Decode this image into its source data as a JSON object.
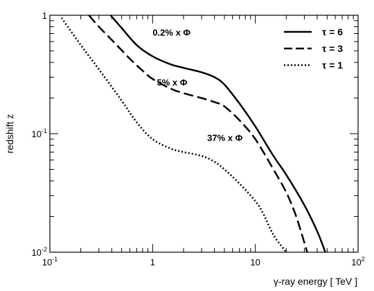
{
  "chart_data": {
    "type": "line",
    "xlabel": "γ-ray energy [ TeV ]",
    "ylabel": "redshift z",
    "xscale": "log",
    "yscale": "log",
    "xlim": [
      0.1,
      100
    ],
    "ylim": [
      0.01,
      1
    ],
    "x_ticks": [
      {
        "label": "10",
        "sup": "-1",
        "value": 0.1
      },
      {
        "label": "1",
        "sup": "",
        "value": 1
      },
      {
        "label": "10",
        "sup": "",
        "value": 10
      },
      {
        "label": "10",
        "sup": "2",
        "value": 100
      }
    ],
    "y_ticks": [
      {
        "label": "10",
        "sup": "-2",
        "value": 0.01
      },
      {
        "label": "10",
        "sup": "-1",
        "value": 0.1
      },
      {
        "label": "1",
        "sup": "",
        "value": 1
      }
    ],
    "legend_position": "top-right",
    "series": [
      {
        "name": "τ = 6",
        "style": "solid",
        "color": "#000000",
        "x": [
          0.39,
          0.5,
          0.7,
          1.0,
          1.5,
          2.0,
          3.0,
          4.0,
          5.0,
          7.0,
          10.0,
          15.0,
          20.0,
          30.0,
          40.0,
          48.0
        ],
        "y": [
          1.0,
          0.78,
          0.56,
          0.45,
          0.385,
          0.36,
          0.33,
          0.3,
          0.26,
          0.18,
          0.115,
          0.065,
          0.045,
          0.025,
          0.015,
          0.01
        ]
      },
      {
        "name": "τ = 3",
        "style": "dashed",
        "color": "#000000",
        "x": [
          0.24,
          0.3,
          0.4,
          0.6,
          0.8,
          1.0,
          1.5,
          2.0,
          3.0,
          4.0,
          5.0,
          7.0,
          10.0,
          15.0,
          20.0,
          25.0,
          32.0
        ],
        "y": [
          1.0,
          0.8,
          0.62,
          0.43,
          0.34,
          0.29,
          0.24,
          0.22,
          0.2,
          0.185,
          0.17,
          0.13,
          0.09,
          0.05,
          0.032,
          0.02,
          0.01
        ]
      },
      {
        "name": "τ = 1",
        "style": "dotted",
        "color": "#000000",
        "x": [
          0.13,
          0.2,
          0.3,
          0.5,
          0.7,
          1.0,
          1.5,
          2.0,
          3.0,
          4.0,
          5.0,
          7.0,
          10.0,
          12.0,
          15.0,
          20.0
        ],
        "y": [
          0.95,
          0.56,
          0.35,
          0.19,
          0.125,
          0.09,
          0.075,
          0.07,
          0.065,
          0.058,
          0.05,
          0.038,
          0.027,
          0.021,
          0.014,
          0.01
        ]
      }
    ],
    "annotations": [
      {
        "text": "0.2% x Φ",
        "x": 1.0,
        "y": 0.67
      },
      {
        "text": "5% x Φ",
        "x": 1.1,
        "y": 0.255
      },
      {
        "text": "37% x Φ",
        "x": 3.4,
        "y": 0.087
      }
    ]
  }
}
